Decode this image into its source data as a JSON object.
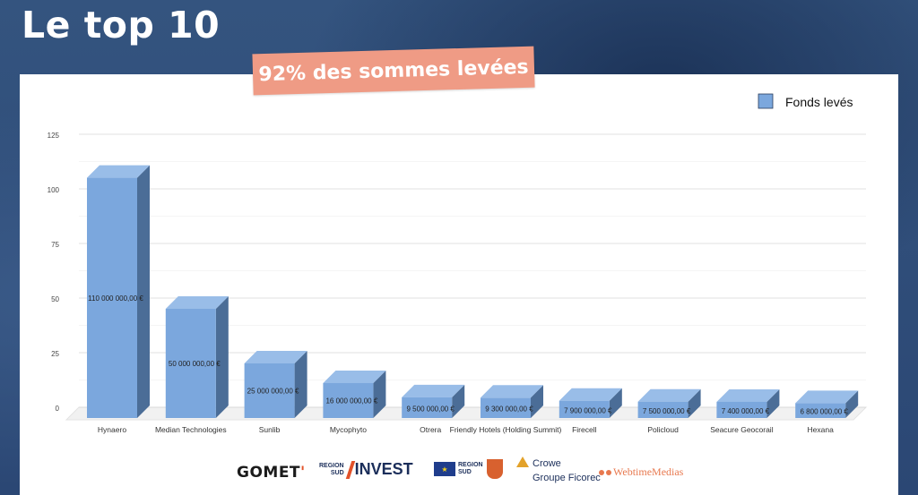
{
  "page": {
    "title": "Le top 10",
    "banner": "92% des sommes levées"
  },
  "chart_data": {
    "type": "bar",
    "categories": [
      "Hynaero",
      "Median Technologies",
      "Sunlib",
      "Mycophyto",
      "Otrera",
      "Friendly Hotels (Holding Summit)",
      "Firecell",
      "Policloud",
      "Seacure Geocorail",
      "Hexana"
    ],
    "values": [
      110000000,
      50000000,
      25000000,
      16000000,
      9500000,
      9300000,
      7900000,
      7500000,
      7400000,
      6800000
    ],
    "data_labels": [
      "110 000 000,00 €",
      "50 000 000,00 €",
      "25 000 000,00 €",
      "16 000 000,00 €",
      "9 500 000,00 €",
      "9 300 000,00 €",
      "7 900 000,00 €",
      "7 500 000,00 €",
      "7 400 000,00 €",
      "6 800 000,00 €"
    ],
    "y_ticks": [
      "0",
      "25",
      "50",
      "75",
      "100",
      "125"
    ],
    "ylim": [
      0,
      125
    ],
    "legend": {
      "label": "Fonds levés",
      "position": "top-right"
    },
    "grid": true,
    "colors": {
      "front": "#7ba7dd",
      "top": "#99bde8",
      "side": "#4b6d97",
      "grid": "#d6d6d6",
      "floor": "#f1f1f1"
    }
  },
  "logos": {
    "gomet": "GOMET",
    "region_top": "REGION",
    "region_bottom": "SUD",
    "invest": "INVEST",
    "region_sud_top": "REGION",
    "region_sud_bottom": "SUD",
    "crowe": "Crowe",
    "crowe_sub": "Groupe Ficorec",
    "webtime": "WebtimeMedias"
  },
  "colors": {
    "background": "#2c4a75",
    "banner": "#ef9b85",
    "title": "#ffffff"
  }
}
